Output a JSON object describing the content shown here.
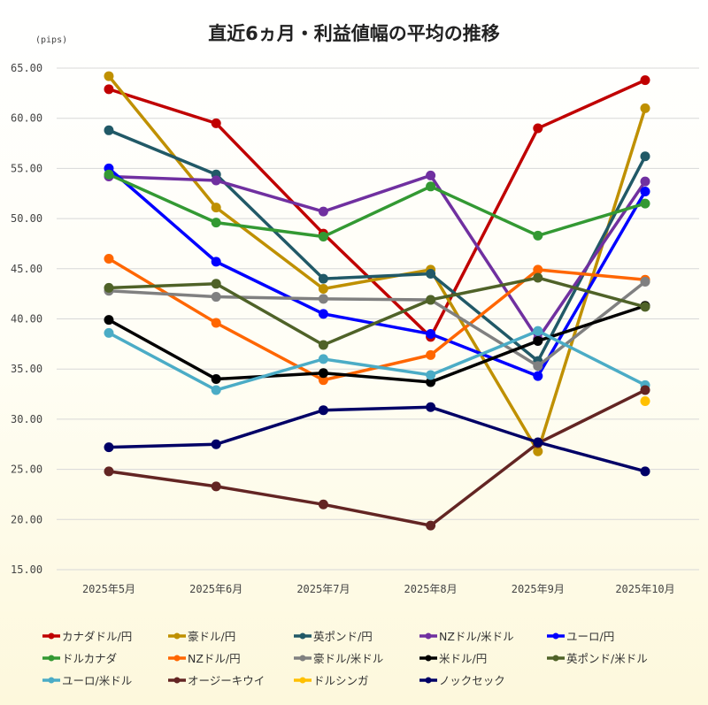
{
  "chart_data": {
    "type": "line",
    "title": "直近6ヵ月・利益値幅の平均の推移",
    "ylabel": "(pips)",
    "xlabel": "",
    "ylim": [
      15,
      65
    ],
    "yticks": [
      "15.00",
      "20.00",
      "25.00",
      "30.00",
      "35.00",
      "40.00",
      "45.00",
      "50.00",
      "55.00",
      "60.00",
      "65.00"
    ],
    "grid": true,
    "legend_position": "bottom",
    "categories": [
      "2025年5月",
      "2025年6月",
      "2025年7月",
      "2025年8月",
      "2025年9月",
      "2025年10月"
    ],
    "series": [
      {
        "name": "カナダドル/円",
        "color": "#c00000",
        "values": [
          62.9,
          59.5,
          48.5,
          38.2,
          59.0,
          63.8
        ]
      },
      {
        "name": "豪ドル/円",
        "color": "#bf9000",
        "values": [
          64.2,
          51.1,
          43.0,
          44.9,
          26.8,
          61.0
        ]
      },
      {
        "name": "英ポンド/円",
        "color": "#215967",
        "values": [
          58.8,
          54.4,
          44.0,
          44.5,
          35.8,
          56.2
        ]
      },
      {
        "name": "NZドル/米ドル",
        "color": "#7030a0",
        "values": [
          54.2,
          53.8,
          50.7,
          54.3,
          38.0,
          53.7
        ]
      },
      {
        "name": "ユーロ/円",
        "color": "#0000ff",
        "values": [
          55.0,
          45.7,
          40.5,
          38.5,
          34.3,
          52.7
        ]
      },
      {
        "name": "ドルカナダ",
        "color": "#339933",
        "values": [
          54.4,
          49.6,
          48.2,
          53.2,
          48.3,
          51.5
        ]
      },
      {
        "name": "NZドル/円",
        "color": "#ff6600",
        "values": [
          46.0,
          39.6,
          33.9,
          36.4,
          44.9,
          43.9
        ]
      },
      {
        "name": "豪ドル/米ドル",
        "color": "#808080",
        "values": [
          42.8,
          42.2,
          42.0,
          41.9,
          35.3,
          43.7
        ]
      },
      {
        "name": "米ドル/円",
        "color": "#000000",
        "values": [
          39.9,
          34.0,
          34.6,
          33.7,
          37.8,
          41.3
        ]
      },
      {
        "name": "英ポンド/米ドル",
        "color": "#4f6228",
        "values": [
          43.1,
          43.5,
          37.4,
          41.9,
          44.1,
          41.2
        ]
      },
      {
        "name": "ユーロ/米ドル",
        "color": "#4bacc6",
        "values": [
          38.6,
          32.9,
          36.0,
          34.4,
          38.8,
          33.4
        ]
      },
      {
        "name": "オージーキウイ",
        "color": "#632523",
        "values": [
          24.8,
          23.3,
          21.5,
          19.4,
          27.6,
          32.9
        ]
      },
      {
        "name": "ドルシンガ",
        "color": "#ffc000",
        "values": [
          null,
          null,
          null,
          null,
          null,
          31.8
        ]
      },
      {
        "name": "ノックセック",
        "color": "#000066",
        "values": [
          27.2,
          27.5,
          30.9,
          31.2,
          27.7,
          24.8
        ]
      }
    ]
  }
}
